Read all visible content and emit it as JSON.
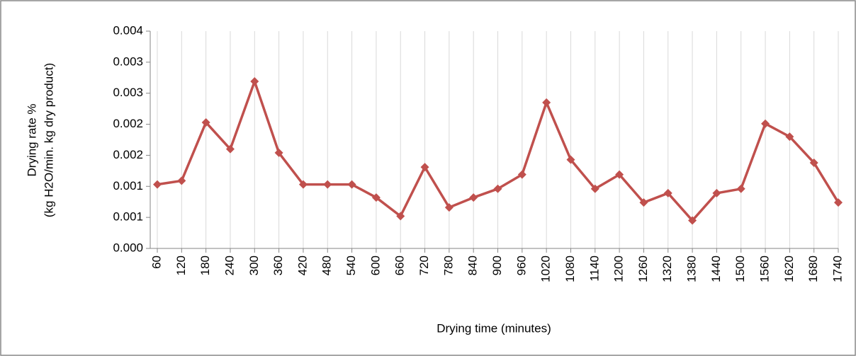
{
  "chart_data": {
    "type": "line",
    "ylabel": [
      "Drying rate %",
      "(kg H2O/min. kg dry product)"
    ],
    "xlabel": "Drying time (minutes)",
    "x": [
      60,
      120,
      180,
      240,
      300,
      360,
      420,
      480,
      540,
      600,
      660,
      720,
      780,
      840,
      900,
      960,
      1020,
      1080,
      1140,
      1200,
      1260,
      1320,
      1380,
      1440,
      1500,
      1560,
      1620,
      1680,
      1740
    ],
    "xlim": [
      60,
      1740
    ],
    "series": [
      {
        "color": "#c0504d",
        "values": [
          0.00103,
          0.00109,
          0.00203,
          0.0016,
          0.00269,
          0.00154,
          0.00103,
          0.00103,
          0.00103,
          0.00082,
          0.00052,
          0.00131,
          0.00066,
          0.00082,
          0.00096,
          0.00119,
          0.00235,
          0.00143,
          0.00096,
          0.00119,
          0.00074,
          0.00089,
          0.00045,
          0.00089,
          0.00096,
          0.00201,
          0.0018,
          0.00138,
          0.00074
        ]
      }
    ],
    "ylim": [
      0,
      0.0035
    ],
    "yticks": [
      {
        "value": 0,
        "label": "0.000"
      },
      {
        "value": 0.0005,
        "label": "0.001"
      },
      0.001,
      {
        "value": 0.0015,
        "label": "0.002"
      },
      0.002,
      {
        "value": 0.0025,
        "label": "0.003"
      },
      0.003,
      {
        "value": 0.0035,
        "label": "0.004"
      }
    ],
    "grid": "x"
  }
}
